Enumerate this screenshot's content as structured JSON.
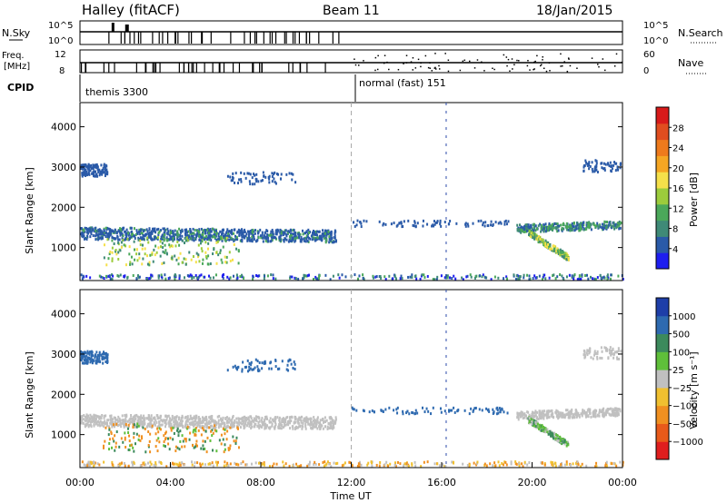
{
  "header": {
    "station": "Halley (fitACF)",
    "beam": "Beam 11",
    "date": "18/Jan/2015"
  },
  "panels": {
    "nsky": {
      "left_label": "N.Sky",
      "right_label": "N.Search",
      "left_ticks": [
        "10^5",
        "10^0"
      ],
      "right_ticks": [
        "10^5",
        "10^0"
      ]
    },
    "freq": {
      "left_label_1": "Freq.",
      "left_label_2": "[MHz]",
      "left_ticks": [
        "12",
        "8"
      ],
      "right_label": "Nave",
      "right_ticks": [
        "60",
        "0"
      ]
    },
    "cpid": {
      "label": "CPID",
      "modes": [
        "themis 3300",
        "normal (fast) 151"
      ]
    }
  },
  "chart_data": [
    {
      "type": "heatmap",
      "name": "power",
      "ylabel": "Slant Range [km]",
      "ylim": [
        180,
        4600
      ],
      "yticks": [
        1000,
        2000,
        3000,
        4000
      ],
      "colorbar": {
        "label": "Power [dB]",
        "ticks": [
          4,
          8,
          12,
          16,
          20,
          24,
          28
        ]
      },
      "scatter_bands": [
        {
          "from": 0.0,
          "to": 11.3,
          "range_km": 1450,
          "note": "main E/F echo band"
        },
        {
          "from": 0.0,
          "to": 1.2,
          "range_km": 2900,
          "note": "upper band"
        },
        {
          "from": 19.3,
          "to": 23.9,
          "range_km": 1500
        },
        {
          "from": 19.8,
          "to": 21.5,
          "range_km": 900
        }
      ]
    },
    {
      "type": "heatmap",
      "name": "velocity",
      "ylabel": "Slant Range [km]",
      "xlabel": "Time UT",
      "ylim": [
        180,
        4600
      ],
      "yticks": [
        1000,
        2000,
        3000,
        4000
      ],
      "xticks": [
        "00:00",
        "04:00",
        "08:00",
        "12:00",
        "16:00",
        "20:00",
        "00:00"
      ],
      "colorbar": {
        "label": "Velocity [m s⁻¹]",
        "ticks": [
          "1000",
          "500",
          "100",
          "25",
          "−25",
          "−100",
          "−500",
          "−1000"
        ]
      }
    }
  ],
  "colors": {
    "power_scale": [
      "#1e1ef0",
      "#2a5aa8",
      "#3f8a77",
      "#4ba85a",
      "#9ccc3c",
      "#f5e04a",
      "#f5a623",
      "#ee7a1c",
      "#e04d1f",
      "#d81a1a"
    ],
    "velocity_scale": [
      "#1e3ea8",
      "#2e6ab0",
      "#3c8a5c",
      "#5fbf3a",
      "#c0c0c0",
      "#f0c030",
      "#f09020",
      "#e85a1a",
      "#e01e1e"
    ]
  }
}
